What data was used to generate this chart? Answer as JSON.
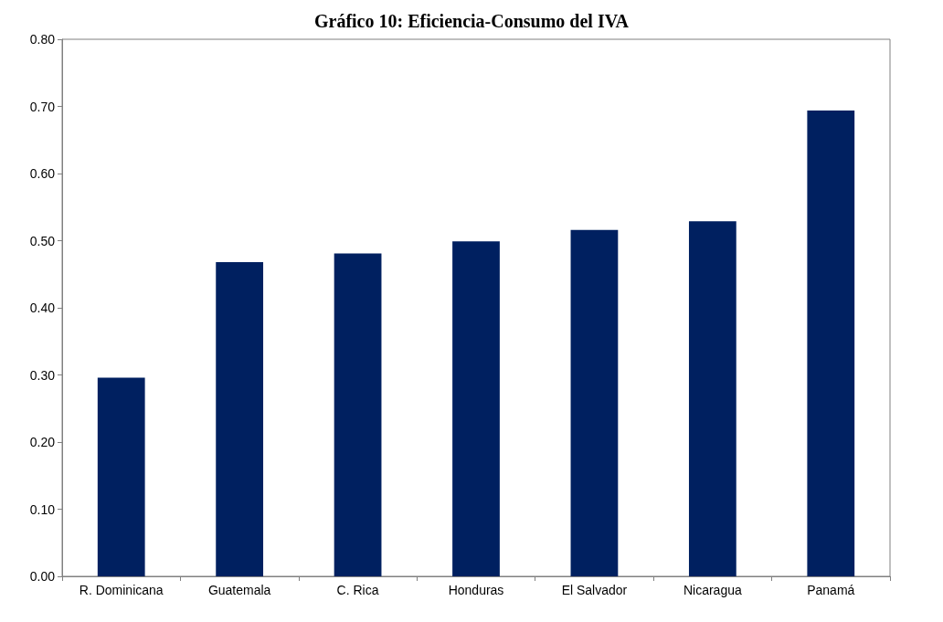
{
  "chart_data": {
    "type": "bar",
    "title": "Gráfico 10: Eficiencia-Consumo del IVA",
    "categories": [
      "R. Dominicana",
      "Guatemala",
      "C. Rica",
      "Honduras",
      "El Salvador",
      "Nicaragua",
      "Panamá"
    ],
    "values": [
      0.296,
      0.468,
      0.481,
      0.499,
      0.516,
      0.529,
      0.694
    ],
    "color": "#002060",
    "ylim": [
      0,
      0.8
    ],
    "yticks": [
      {
        "value": 0,
        "label": "0.00"
      },
      {
        "value": 0.1,
        "label": "0.10"
      },
      {
        "value": 0.2,
        "label": "0.20"
      },
      {
        "value": 0.3,
        "label": "0.30"
      },
      {
        "value": 0.4,
        "label": "0.40"
      },
      {
        "value": 0.5,
        "label": "0.50"
      },
      {
        "value": 0.6,
        "label": "0.60"
      },
      {
        "value": 0.7,
        "label": "0.70"
      },
      {
        "value": 0.8,
        "label": "0.80"
      }
    ],
    "grid": false
  }
}
